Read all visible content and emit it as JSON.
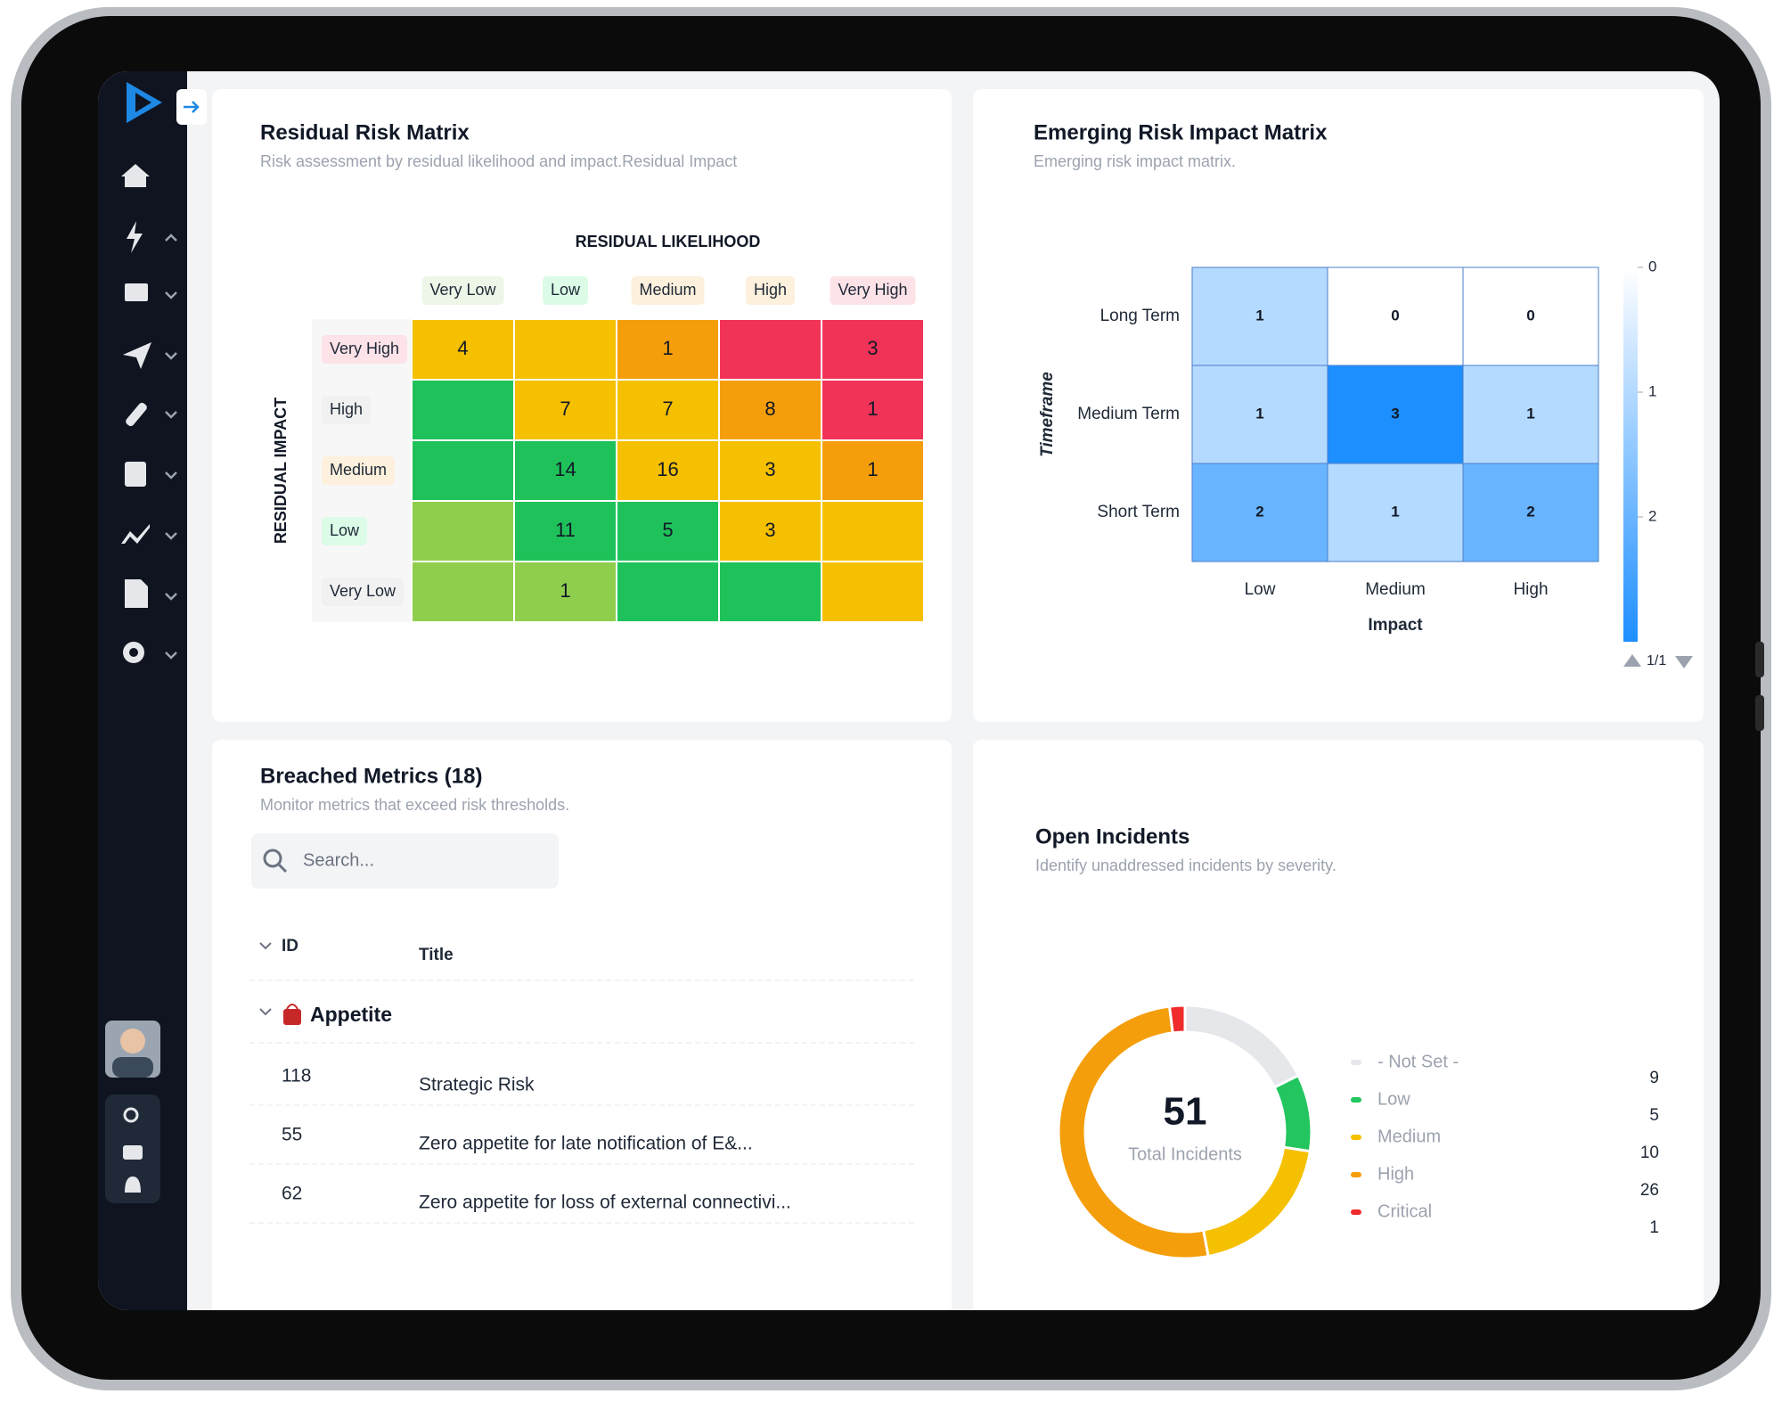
{
  "residual_matrix": {
    "title": "Residual Risk Matrix",
    "subtitle": "Risk assessment by residual likelihood and impact.Residual Impact",
    "x_axis_label": "RESIDUAL LIKELIHOOD",
    "y_axis_label": "RESIDUAL IMPACT",
    "columns": [
      "Very Low",
      "Low",
      "Medium",
      "High",
      "Very High"
    ],
    "rows": [
      "Very High",
      "High",
      "Medium",
      "Low",
      "Very Low"
    ],
    "cells": [
      [
        4,
        null,
        1,
        null,
        3
      ],
      [
        null,
        7,
        7,
        8,
        1
      ],
      [
        null,
        14,
        16,
        3,
        1
      ],
      [
        null,
        11,
        5,
        3,
        null
      ],
      [
        null,
        1,
        null,
        null,
        null
      ]
    ],
    "cell_colors": [
      [
        "#f5c000",
        "#f5c000",
        "#f59e0b",
        "#f23358",
        "#f23358"
      ],
      [
        "#1fc25a",
        "#f5c000",
        "#f5c000",
        "#f59e0b",
        "#f23358"
      ],
      [
        "#1fc25a",
        "#1fc25a",
        "#f5c000",
        "#f5c000",
        "#f59e0b"
      ],
      [
        "#8fce4c",
        "#1fc25a",
        "#1fc25a",
        "#f5c000",
        "#f5c000"
      ],
      [
        "#8fce4c",
        "#8fce4c",
        "#1fc25a",
        "#1fc25a",
        "#f5c000"
      ]
    ]
  },
  "emerging_matrix": {
    "title": "Emerging Risk Impact Matrix",
    "subtitle": "Emerging risk impact matrix.",
    "y_axis_label": "Timeframe",
    "x_axis_label": "Impact",
    "columns": [
      "Low",
      "Medium",
      "High"
    ],
    "rows": [
      "Long Term",
      "Medium Term",
      "Short Term"
    ],
    "cells": [
      [
        1,
        0,
        0
      ],
      [
        1,
        3,
        1
      ],
      [
        2,
        1,
        2
      ]
    ],
    "color_scale": [
      "#ffffff",
      "#1e8fff"
    ],
    "colorbar_lim": [
      0,
      3
    ],
    "colorbar_ticks": [
      0,
      1,
      2
    ],
    "pagination": "1/1"
  },
  "breached_metrics": {
    "title": "Breached Metrics (18)",
    "subtitle": "Monitor metrics that exceed risk thresholds.",
    "search_placeholder": "Search...",
    "columns": [
      "ID",
      "Title"
    ],
    "group": "Appetite",
    "rows": [
      [
        118,
        "Strategic Risk"
      ],
      [
        55,
        "Zero appetite for late notification of E&..."
      ],
      [
        62,
        "Zero appetite for loss of external connectivi..."
      ]
    ]
  },
  "open_incidents": {
    "title": "Open Incidents",
    "subtitle": "Identify unaddressed incidents by severity.",
    "total": 51,
    "total_label": "Total Incidents",
    "categories": [
      "- Not Set -",
      "Low",
      "Medium",
      "High",
      "Critical"
    ],
    "values": [
      9,
      5,
      10,
      26,
      1
    ],
    "colors": [
      "#e5e7eb",
      "#22c55e",
      "#f5c000",
      "#f59e0b",
      "#ef2b2b"
    ]
  }
}
